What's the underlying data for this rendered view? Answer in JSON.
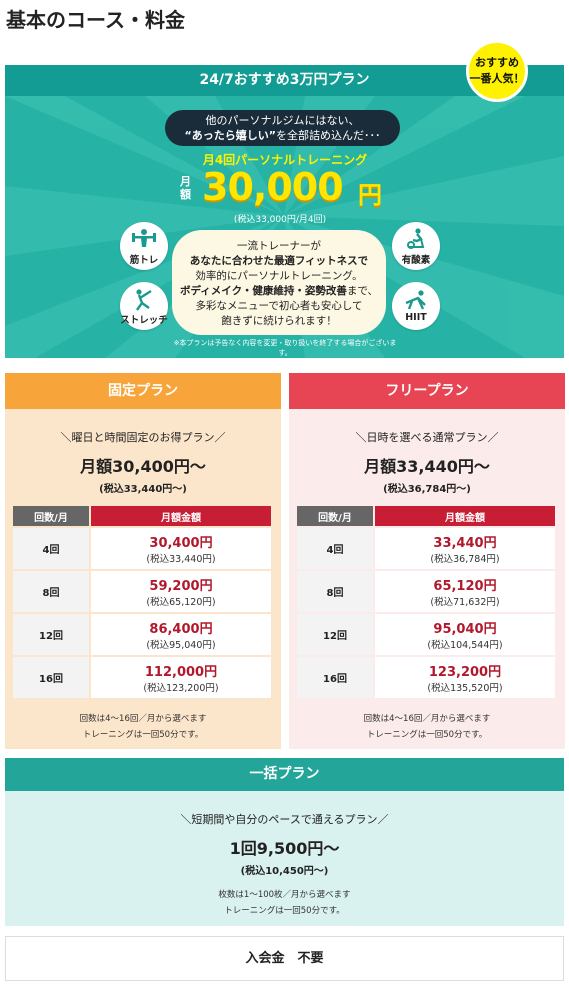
{
  "page_title": "基本のコース・料金",
  "hero": {
    "header": "24/7おすすめ3万円プラン",
    "badge_line1": "おすすめ",
    "badge_line2": "一番人気！",
    "bubble_line1": "他のパーソナルジムにはない、",
    "bubble_line2_bold": "“あったら嬉しい”",
    "bubble_line2_rest": "を全部詰め込んだ･･･",
    "monthly_title": "月4回パーソナルトレーニング",
    "getsu": "月額",
    "price": "30,000",
    "yen": "円",
    "tax": "(税込33,000円/月4回)",
    "panel_line1": "一流トレーナーが",
    "panel_line2": "あなたに合わせた最適フィットネスで",
    "panel_line3": "効率的にパーソナルトレーニング。",
    "panel_line4_bold": "ボディメイク・健康維持・姿勢改善",
    "panel_line4_rest": "まで、",
    "panel_line5": "多彩なメニューで初心者も安心して",
    "panel_line6": "飽きずに続けられます！",
    "features": [
      "筋トレ",
      "有酸素",
      "ストレッチ",
      "HIIT"
    ],
    "feature_icons": [
      "dumbbell-icon",
      "bike-icon",
      "stretch-icon",
      "hiit-icon"
    ],
    "note": "※本プランは予告なく内容を変更・取り扱いを終了する場合がございます。"
  },
  "fixed_plan": {
    "title": "固定プラン",
    "subtitle": "＼曜日と時間固定のお得プラン／",
    "price": "月額30,400円〜",
    "tax": "(税込33,440円〜)",
    "table_headers": [
      "回数/月",
      "月額金額"
    ],
    "rows": [
      {
        "count": "4回",
        "price": "30,400円",
        "tax": "(税込33,440円)"
      },
      {
        "count": "8回",
        "price": "59,200円",
        "tax": "(税込65,120円)"
      },
      {
        "count": "12回",
        "price": "86,400円",
        "tax": "(税込95,040円)"
      },
      {
        "count": "16回",
        "price": "112,000円",
        "tax": "(税込123,200円)"
      }
    ],
    "foot1": "回数は4〜16回／月から選べます",
    "foot2": "トレーニングは一回50分です。"
  },
  "free_plan": {
    "title": "フリープラン",
    "subtitle": "＼日時を選べる通常プラン／",
    "price": "月額33,440円〜",
    "tax": "(税込36,784円〜)",
    "table_headers": [
      "回数/月",
      "月額金額"
    ],
    "rows": [
      {
        "count": "4回",
        "price": "33,440円",
        "tax": "(税込36,784円)"
      },
      {
        "count": "8回",
        "price": "65,120円",
        "tax": "(税込71,632円)"
      },
      {
        "count": "12回",
        "price": "95,040円",
        "tax": "(税込104,544円)"
      },
      {
        "count": "16回",
        "price": "123,200円",
        "tax": "(税込135,520円)"
      }
    ],
    "foot1": "回数は4〜16回／月から選べます",
    "foot2": "トレーニングは一回50分です。"
  },
  "bulk_plan": {
    "title": "一括プラン",
    "subtitle": "＼短期間や自分のペースで通えるプラン／",
    "price": "1回9,500円〜",
    "tax": "(税込10,450円〜)",
    "foot1": "枚数は1〜100枚／月から選べます",
    "foot2": "トレーニングは一回50分です。"
  },
  "entry_fee": "入会金　不要",
  "colors": {
    "hero_bg": "#26b3a6",
    "fixed_accent": "#f7a53a",
    "free_accent": "#e74553",
    "bulk_accent": "#23a59a",
    "price_red": "#b2182b"
  }
}
